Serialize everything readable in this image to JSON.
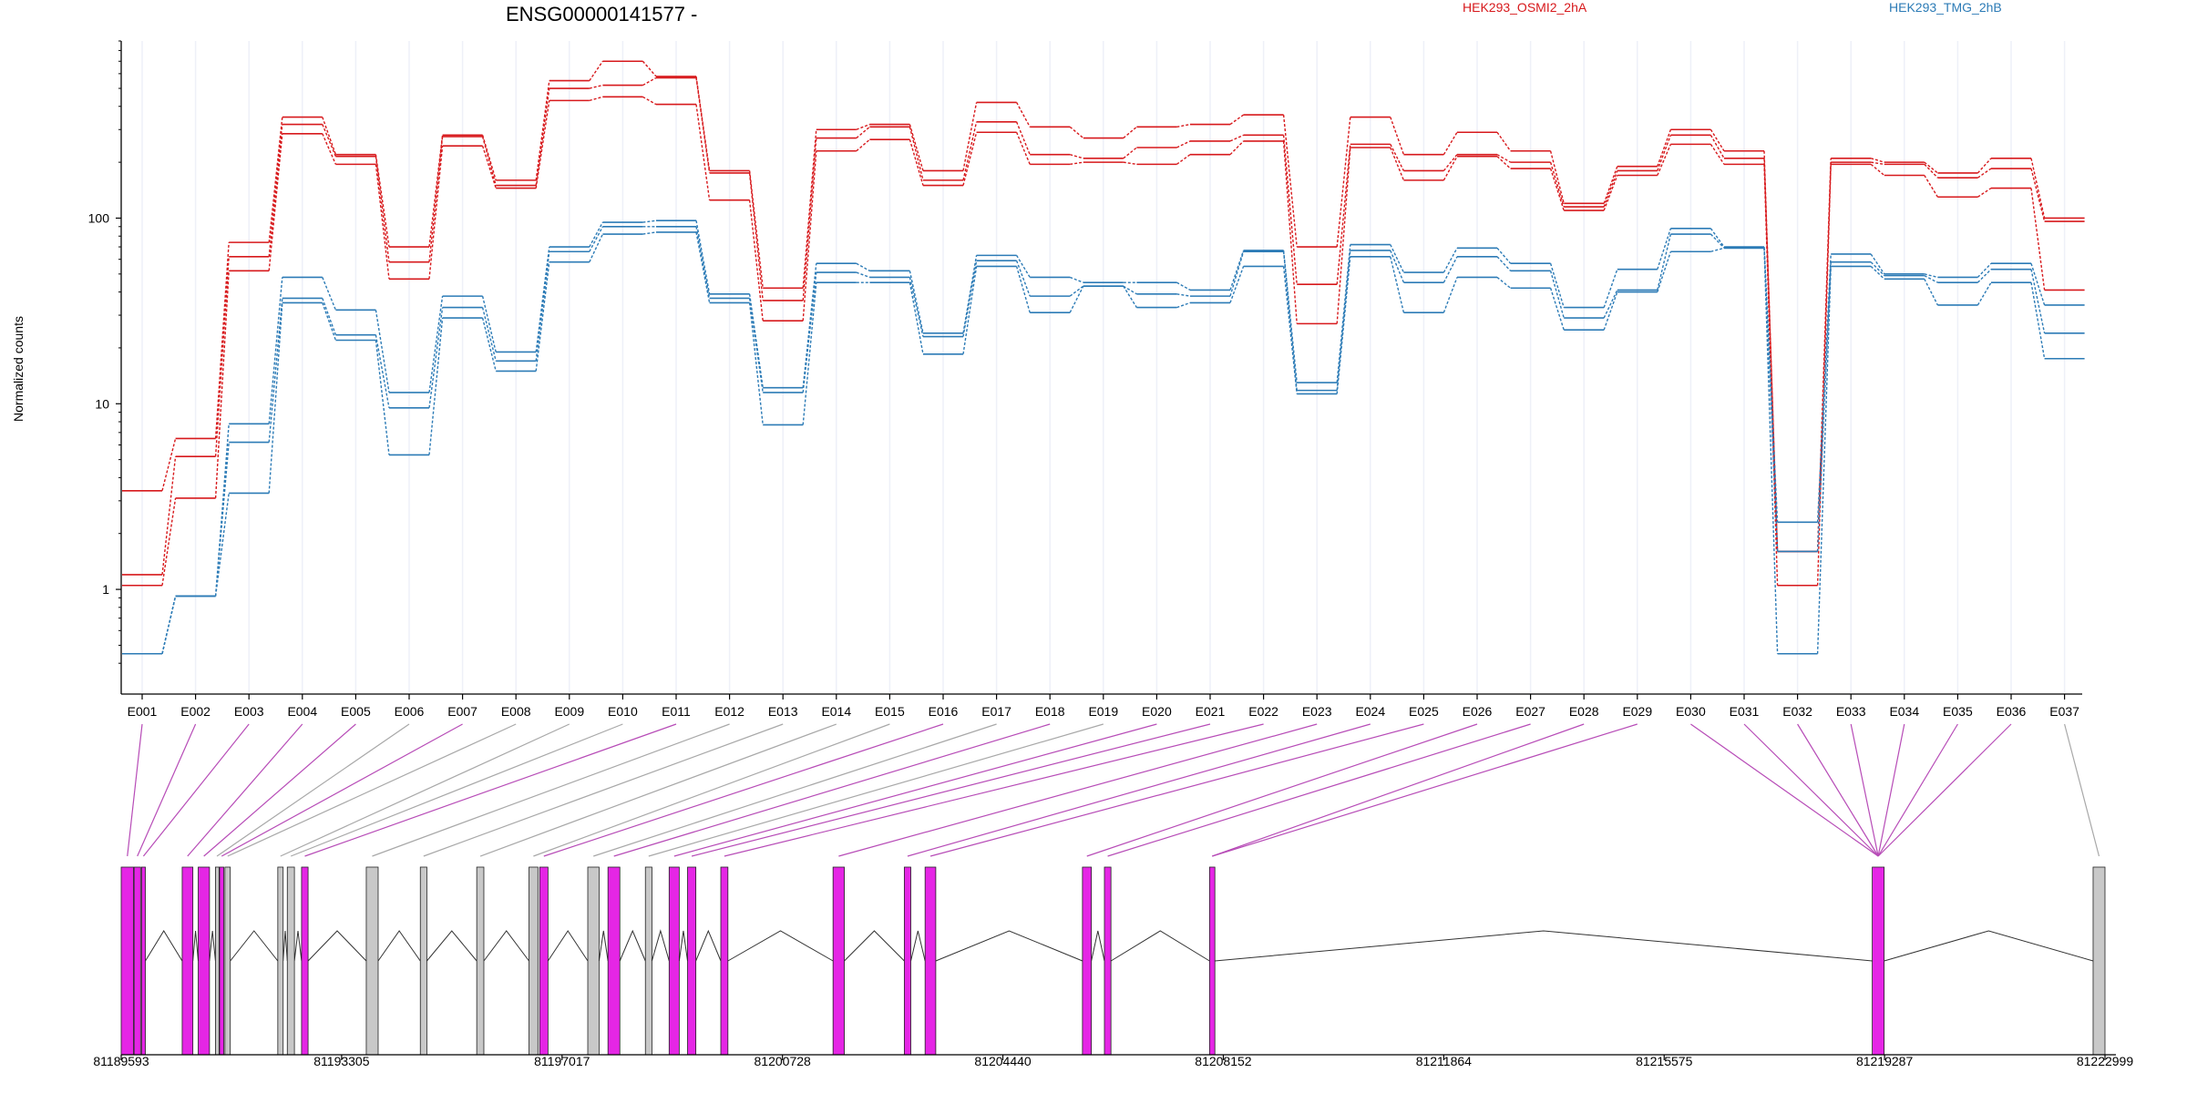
{
  "title": "ENSG00000141577 -",
  "colors": {
    "OSMI": "#d7191c",
    "TMG": "#2c7bb6",
    "exon_diff": "#e526e5",
    "exon_nodiff": "#c8c8c8",
    "connector_diff": "#b74cb7",
    "connector_nodiff": "#a8a8a8",
    "axis": "#000000",
    "grid": "#eef0f8"
  },
  "legend": [
    {
      "name": "HEK293_OSMI2_2hA",
      "color_key": "OSMI"
    },
    {
      "name": "HEK293_TMG_2hB",
      "color_key": "TMG"
    }
  ],
  "chart_data": {
    "type": "line",
    "ylabel": "Normalized counts",
    "xlabel": "",
    "yscale": "log",
    "ylim": [
      0.35,
      900
    ],
    "yticks": [
      1,
      10,
      100
    ],
    "ytick_labels": [
      "1",
      "10",
      "100"
    ],
    "grid": true,
    "legend_position": "top-right",
    "categories": [
      "E001",
      "E002",
      "E003",
      "E004",
      "E005",
      "E006",
      "E007",
      "E008",
      "E009",
      "E010",
      "E011",
      "E012",
      "E013",
      "E014",
      "E015",
      "E016",
      "E017",
      "E018",
      "E019",
      "E020",
      "E021",
      "E022",
      "E023",
      "E024",
      "E025",
      "E026",
      "E027",
      "E028",
      "E029",
      "E030",
      "E031",
      "E032",
      "E033",
      "E034",
      "E035",
      "E036",
      "E037"
    ],
    "series": [
      {
        "name": "HEK293_OSMI2_2hA",
        "group": "OSMI",
        "values": [
          3.4,
          6.5,
          74,
          350,
          220,
          70,
          280,
          160,
          550,
          700,
          580,
          180,
          42,
          300,
          320,
          180,
          420,
          310,
          270,
          310,
          320,
          360,
          70,
          350,
          220,
          290,
          230,
          120,
          190,
          300,
          230,
          1.6,
          210,
          200,
          175,
          210,
          100
        ]
      },
      {
        "name": "HEK293_OSMI2_2hA",
        "group": "OSMI",
        "values": [
          1.2,
          5.2,
          62,
          320,
          215,
          58,
          275,
          150,
          500,
          520,
          570,
          175,
          36,
          270,
          310,
          160,
          330,
          220,
          210,
          240,
          260,
          280,
          44,
          250,
          180,
          220,
          200,
          115,
          180,
          280,
          210,
          1.6,
          200,
          195,
          165,
          185,
          96
        ]
      },
      {
        "name": "HEK293_OSMI2_2hA",
        "group": "OSMI",
        "values": [
          1.05,
          3.1,
          52,
          285,
          195,
          47,
          245,
          145,
          430,
          450,
          410,
          125,
          28,
          230,
          265,
          150,
          290,
          195,
          200,
          195,
          220,
          260,
          27,
          240,
          160,
          215,
          185,
          110,
          170,
          250,
          195,
          1.05,
          195,
          170,
          130,
          145,
          41
        ]
      },
      {
        "name": "HEK293_TMG_2hB",
        "group": "TMG",
        "values": [
          0.45,
          0.92,
          7.8,
          48,
          32,
          11.5,
          38,
          19,
          70,
          95,
          97,
          39,
          12.2,
          57,
          52,
          24,
          63,
          48,
          45,
          45,
          41,
          67,
          13,
          72,
          51,
          69,
          57,
          33,
          53,
          88,
          70,
          2.3,
          64,
          50,
          48,
          57,
          34
        ]
      },
      {
        "name": "HEK293_TMG_2hB",
        "group": "TMG",
        "values": [
          0.45,
          0.92,
          6.2,
          37,
          23.5,
          9.5,
          33,
          17,
          66,
          90,
          90,
          37,
          11.5,
          51,
          48,
          23,
          59,
          38,
          43,
          39,
          38,
          66,
          11.8,
          67,
          45,
          62,
          52,
          29,
          41,
          82,
          69,
          1.6,
          58,
          49,
          45,
          53,
          24
        ]
      },
      {
        "name": "HEK293_TMG_2hB",
        "group": "TMG",
        "values": [
          0.45,
          0.92,
          3.3,
          35,
          22,
          5.3,
          29,
          15,
          58,
          82,
          84,
          35,
          7.7,
          45,
          45,
          18.5,
          55,
          31,
          43,
          33,
          35,
          55,
          11.3,
          62,
          31,
          48,
          42,
          25,
          40,
          66,
          69,
          0.45,
          55,
          47,
          34,
          45,
          17.5
        ]
      }
    ],
    "genomic_axis": {
      "tick_labels": [
        "81189593",
        "81193305",
        "81197017",
        "81200728",
        "81204440",
        "81208152",
        "81211864",
        "81215575",
        "81219287",
        "81222999"
      ],
      "start": 81189593,
      "end": 81222999
    },
    "gene_model": {
      "exons": [
        {
          "start": 81189593,
          "end": 81189800,
          "diff": true
        },
        {
          "start": 81189810,
          "end": 81189920,
          "diff": true
        },
        {
          "start": 81189935,
          "end": 81190000,
          "diff": true
        },
        {
          "start": 81190620,
          "end": 81190800,
          "diff": true
        },
        {
          "start": 81190890,
          "end": 81191080,
          "diff": true
        },
        {
          "start": 81191180,
          "end": 81191230,
          "diff": false
        },
        {
          "start": 81191250,
          "end": 81191320,
          "diff": true
        },
        {
          "start": 81191340,
          "end": 81191430,
          "diff": false
        },
        {
          "start": 81192230,
          "end": 81192320,
          "diff": false
        },
        {
          "start": 81192390,
          "end": 81192510,
          "diff": false
        },
        {
          "start": 81192630,
          "end": 81192740,
          "diff": true
        },
        {
          "start": 81193720,
          "end": 81193920,
          "diff": false
        },
        {
          "start": 81194630,
          "end": 81194740,
          "diff": false
        },
        {
          "start": 81195580,
          "end": 81195700,
          "diff": false
        },
        {
          "start": 81196460,
          "end": 81196610,
          "diff": false
        },
        {
          "start": 81196640,
          "end": 81196780,
          "diff": true
        },
        {
          "start": 81197450,
          "end": 81197640,
          "diff": false
        },
        {
          "start": 81197790,
          "end": 81197990,
          "diff": true
        },
        {
          "start": 81198420,
          "end": 81198530,
          "diff": false
        },
        {
          "start": 81198820,
          "end": 81198990,
          "diff": true
        },
        {
          "start": 81199130,
          "end": 81199270,
          "diff": true
        },
        {
          "start": 81199690,
          "end": 81199810,
          "diff": true
        },
        {
          "start": 81201580,
          "end": 81201770,
          "diff": true
        },
        {
          "start": 81202780,
          "end": 81202890,
          "diff": true
        },
        {
          "start": 81203130,
          "end": 81203310,
          "diff": true
        },
        {
          "start": 81205780,
          "end": 81205930,
          "diff": true
        },
        {
          "start": 81206150,
          "end": 81206260,
          "diff": true
        },
        {
          "start": 81207920,
          "end": 81208010,
          "diff": true
        },
        {
          "start": 81219080,
          "end": 81219280,
          "diff": true
        },
        {
          "start": 81222799,
          "end": 81222999,
          "diff": false
        }
      ],
      "exon_map": [
        0,
        1,
        2,
        3,
        4,
        5,
        6,
        7,
        8,
        9,
        10,
        11,
        12,
        13,
        14,
        15,
        16,
        17,
        18,
        19,
        20,
        21,
        22,
        23,
        24,
        25,
        26,
        27,
        27,
        28,
        28,
        28,
        28,
        28,
        28,
        28,
        29
      ]
    }
  }
}
